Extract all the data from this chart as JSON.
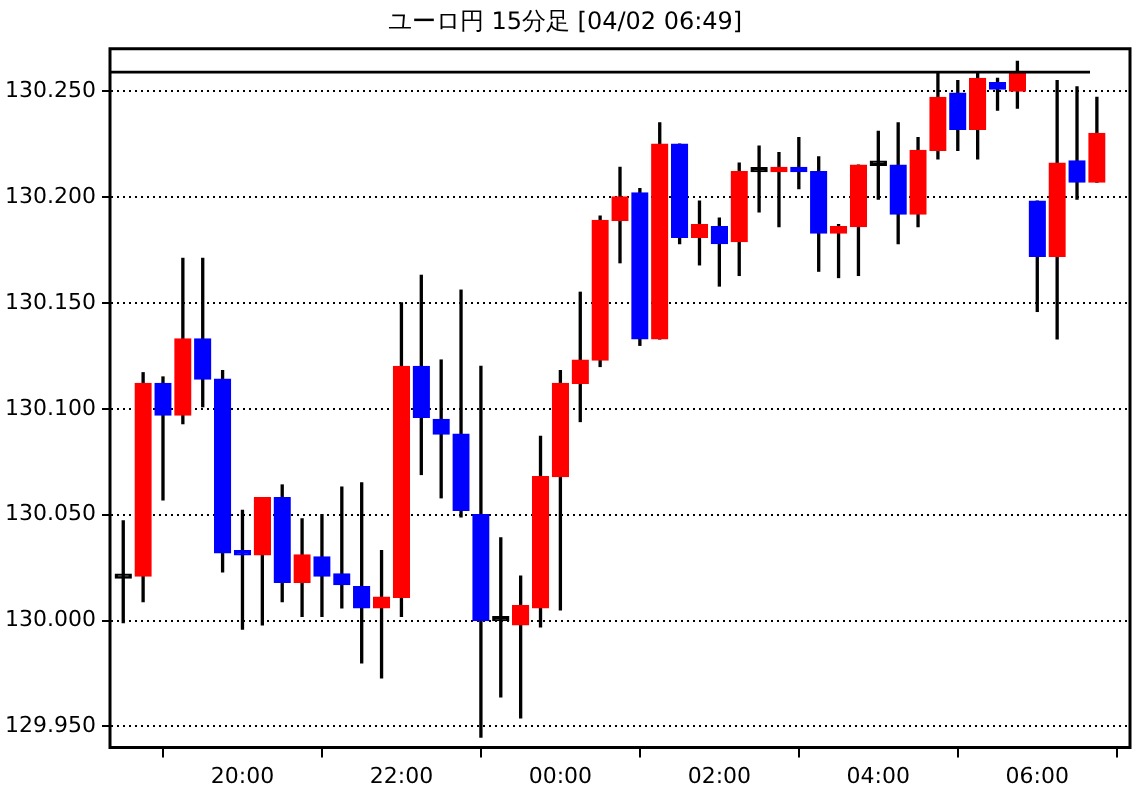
{
  "chart_data": {
    "type": "candlestick",
    "title": "ユーロ円 15分足 [04/02 06:49]",
    "x": [
      "--04-01T18:30",
      "--04-01T18:45",
      "--04-01T19:00",
      "--04-01T19:15",
      "--04-01T19:30",
      "--04-01T19:45",
      "--04-01T20:00",
      "--04-01T20:15",
      "--04-01T20:30",
      "--04-01T20:45",
      "--04-01T21:00",
      "--04-01T21:15",
      "--04-01T21:30",
      "--04-01T21:45",
      "--04-01T22:00",
      "--04-01T22:15",
      "--04-01T22:30",
      "--04-01T22:45",
      "--04-01T23:00",
      "--04-01T23:15",
      "--04-01T23:30",
      "--04-01T23:45",
      "--04-02T00:00",
      "--04-02T00:15",
      "--04-02T00:30",
      "--04-02T00:45",
      "--04-02T01:00",
      "--04-02T01:15",
      "--04-02T01:30",
      "--04-02T01:45",
      "--04-02T02:00",
      "--04-02T02:15",
      "--04-02T02:30",
      "--04-02T02:45",
      "--04-02T03:00",
      "--04-02T03:15",
      "--04-02T03:30",
      "--04-02T03:45",
      "--04-02T04:00",
      "--04-02T04:15",
      "--04-02T04:30",
      "--04-02T04:45",
      "--04-02T05:00",
      "--04-02T05:15",
      "--04-02T05:30",
      "--04-02T05:45",
      "--04-02T06:00",
      "--04-02T06:15",
      "--04-02T06:30",
      "--04-02T06:45"
    ],
    "ohlc": [
      [
        130.02,
        130.047,
        129.999,
        130.02
      ],
      [
        130.021,
        130.117,
        130.009,
        130.112
      ],
      [
        130.112,
        130.115,
        130.057,
        130.097
      ],
      [
        130.097,
        130.171,
        130.093,
        130.133
      ],
      [
        130.133,
        130.171,
        130.101,
        130.114
      ],
      [
        130.114,
        130.118,
        130.023,
        130.032
      ],
      [
        130.033,
        130.052,
        129.996,
        130.031
      ],
      [
        130.031,
        130.058,
        129.998,
        130.058
      ],
      [
        130.058,
        130.064,
        130.009,
        130.018
      ],
      [
        130.018,
        130.048,
        130.002,
        130.031
      ],
      [
        130.03,
        130.05,
        130.002,
        130.021
      ],
      [
        130.022,
        130.063,
        130.006,
        130.017
      ],
      [
        130.016,
        130.065,
        129.98,
        130.006
      ],
      [
        130.006,
        130.033,
        129.973,
        130.011
      ],
      [
        130.011,
        130.15,
        130.002,
        130.12
      ],
      [
        130.12,
        130.163,
        130.069,
        130.096
      ],
      [
        130.095,
        130.123,
        130.058,
        130.088
      ],
      [
        130.088,
        130.156,
        130.049,
        130.052
      ],
      [
        130.05,
        130.12,
        129.945,
        130.0
      ],
      [
        130.0,
        130.039,
        129.964,
        130.0
      ],
      [
        129.998,
        130.021,
        129.954,
        130.007
      ],
      [
        130.006,
        130.087,
        129.997,
        130.068
      ],
      [
        130.068,
        130.118,
        130.005,
        130.112
      ],
      [
        130.112,
        130.155,
        130.094,
        130.123
      ],
      [
        130.123,
        130.191,
        130.12,
        130.189
      ],
      [
        130.189,
        130.214,
        130.169,
        130.2
      ],
      [
        130.202,
        130.204,
        130.13,
        130.133
      ],
      [
        130.133,
        130.235,
        130.133,
        130.225
      ],
      [
        130.225,
        130.225,
        130.178,
        130.181
      ],
      [
        130.181,
        130.198,
        130.168,
        130.187
      ],
      [
        130.186,
        130.19,
        130.158,
        130.178
      ],
      [
        130.179,
        130.216,
        130.163,
        130.212
      ],
      [
        130.212,
        130.224,
        130.193,
        130.212
      ],
      [
        130.212,
        130.221,
        130.186,
        130.214
      ],
      [
        130.214,
        130.228,
        130.204,
        130.212
      ],
      [
        130.212,
        130.219,
        130.165,
        130.183
      ],
      [
        130.183,
        130.187,
        130.162,
        130.186
      ],
      [
        130.186,
        130.215,
        130.163,
        130.215
      ],
      [
        130.215,
        130.231,
        130.199,
        130.215
      ],
      [
        130.215,
        130.235,
        130.178,
        130.192
      ],
      [
        130.192,
        130.228,
        130.186,
        130.222
      ],
      [
        130.222,
        130.259,
        130.218,
        130.247
      ],
      [
        130.249,
        130.255,
        130.222,
        130.232
      ],
      [
        130.232,
        130.259,
        130.218,
        130.256
      ],
      [
        130.254,
        130.256,
        130.241,
        130.251
      ],
      [
        130.25,
        130.264,
        130.242,
        130.259
      ],
      [
        130.198,
        130.198,
        130.146,
        130.172
      ],
      [
        130.172,
        130.255,
        130.133,
        130.216
      ],
      [
        130.217,
        130.252,
        130.199,
        130.207
      ],
      [
        130.207,
        130.247,
        130.207,
        130.23
      ]
    ],
    "colors": [
      "#000000",
      "#ff0000",
      "#0000ff",
      "#ff0000",
      "#0000ff",
      "#0000ff",
      "#0000ff",
      "#ff0000",
      "#0000ff",
      "#ff0000",
      "#0000ff",
      "#0000ff",
      "#0000ff",
      "#ff0000",
      "#ff0000",
      "#0000ff",
      "#0000ff",
      "#0000ff",
      "#0000ff",
      "#000000",
      "#ff0000",
      "#ff0000",
      "#ff0000",
      "#ff0000",
      "#ff0000",
      "#ff0000",
      "#0000ff",
      "#ff0000",
      "#0000ff",
      "#ff0000",
      "#0000ff",
      "#ff0000",
      "#000000",
      "#ff0000",
      "#0000ff",
      "#0000ff",
      "#ff0000",
      "#ff0000",
      "#000000",
      "#0000ff",
      "#ff0000",
      "#ff0000",
      "#0000ff",
      "#ff0000",
      "#0000ff",
      "#ff0000",
      "#0000ff",
      "#ff0000",
      "#0000ff",
      "#ff0000"
    ],
    "xlim": [
      "--04-01T18:20",
      "--04-02T07:10"
    ],
    "xticks": [
      {
        "value": "--04-01T20:00",
        "label": "20:00"
      },
      {
        "value": "--04-01T22:00",
        "label": "22:00"
      },
      {
        "value": "--04-02T00:00",
        "label": "00:00"
      },
      {
        "value": "--04-02T02:00",
        "label": "02:00"
      },
      {
        "value": "--04-02T04:00",
        "label": "04:00"
      },
      {
        "value": "--04-02T06:00",
        "label": "06:00"
      }
    ],
    "ylim": [
      129.94,
      130.27
    ],
    "yticks": [
      {
        "value": 129.95,
        "label": "129.950"
      },
      {
        "value": 130,
        "label": "130.000"
      },
      {
        "value": 130.05,
        "label": "130.050"
      },
      {
        "value": 130.1,
        "label": "130.100"
      },
      {
        "value": 130.15,
        "label": "130.150"
      },
      {
        "value": 130.2,
        "label": "130.200"
      },
      {
        "value": 130.25,
        "label": "130.250"
      }
    ],
    "grid": "y",
    "ref_lines": [
      {
        "axis": "y",
        "value": 130.259,
        "color": "#000000",
        "line_style": "solid"
      }
    ]
  }
}
